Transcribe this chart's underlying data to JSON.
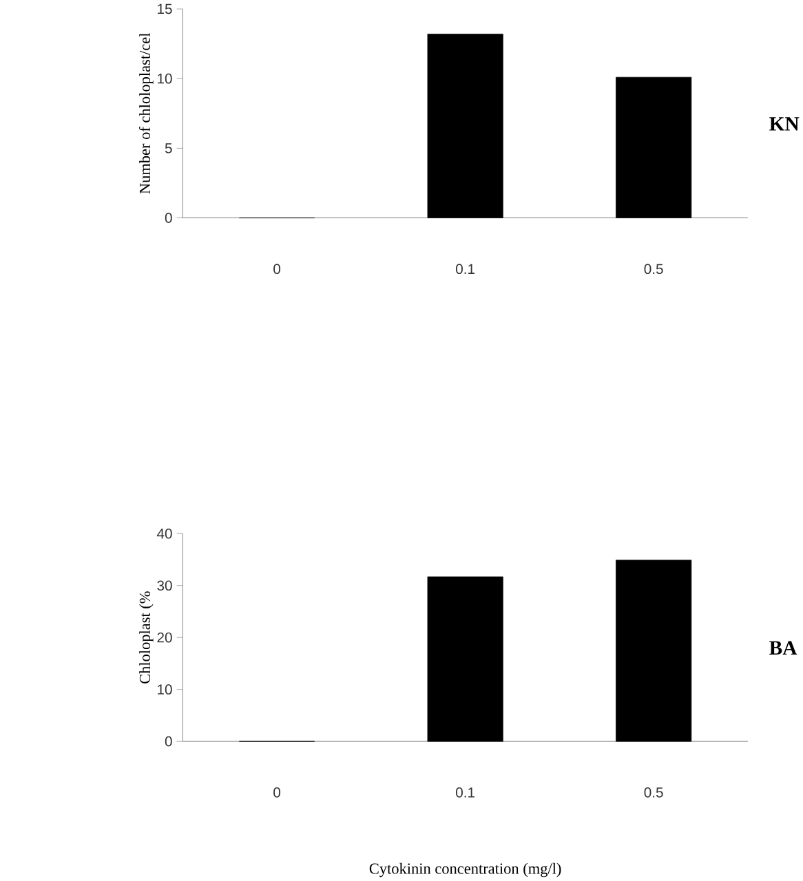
{
  "chart_data": [
    {
      "type": "bar",
      "categories": [
        "0",
        "0.1",
        "0.5"
      ],
      "values": [
        0,
        13.2,
        10.1
      ],
      "color": "#000000",
      "ylabel": "Number of chloloplast/cel",
      "ylim": [
        0,
        15
      ],
      "yticks": [
        0,
        5,
        10,
        15
      ],
      "annotations": [
        "KN"
      ]
    },
    {
      "type": "bar",
      "categories": [
        "0",
        "0.1",
        "0.5"
      ],
      "values": [
        0,
        31.7,
        34.9
      ],
      "color": "#000000",
      "ylabel": "Chloloplast (%",
      "xlabel": "Cytokinin concentration (mg/l)",
      "ylim": [
        0,
        40
      ],
      "yticks": [
        0,
        10,
        20,
        30,
        40
      ],
      "annotations": [
        "BA"
      ]
    }
  ]
}
